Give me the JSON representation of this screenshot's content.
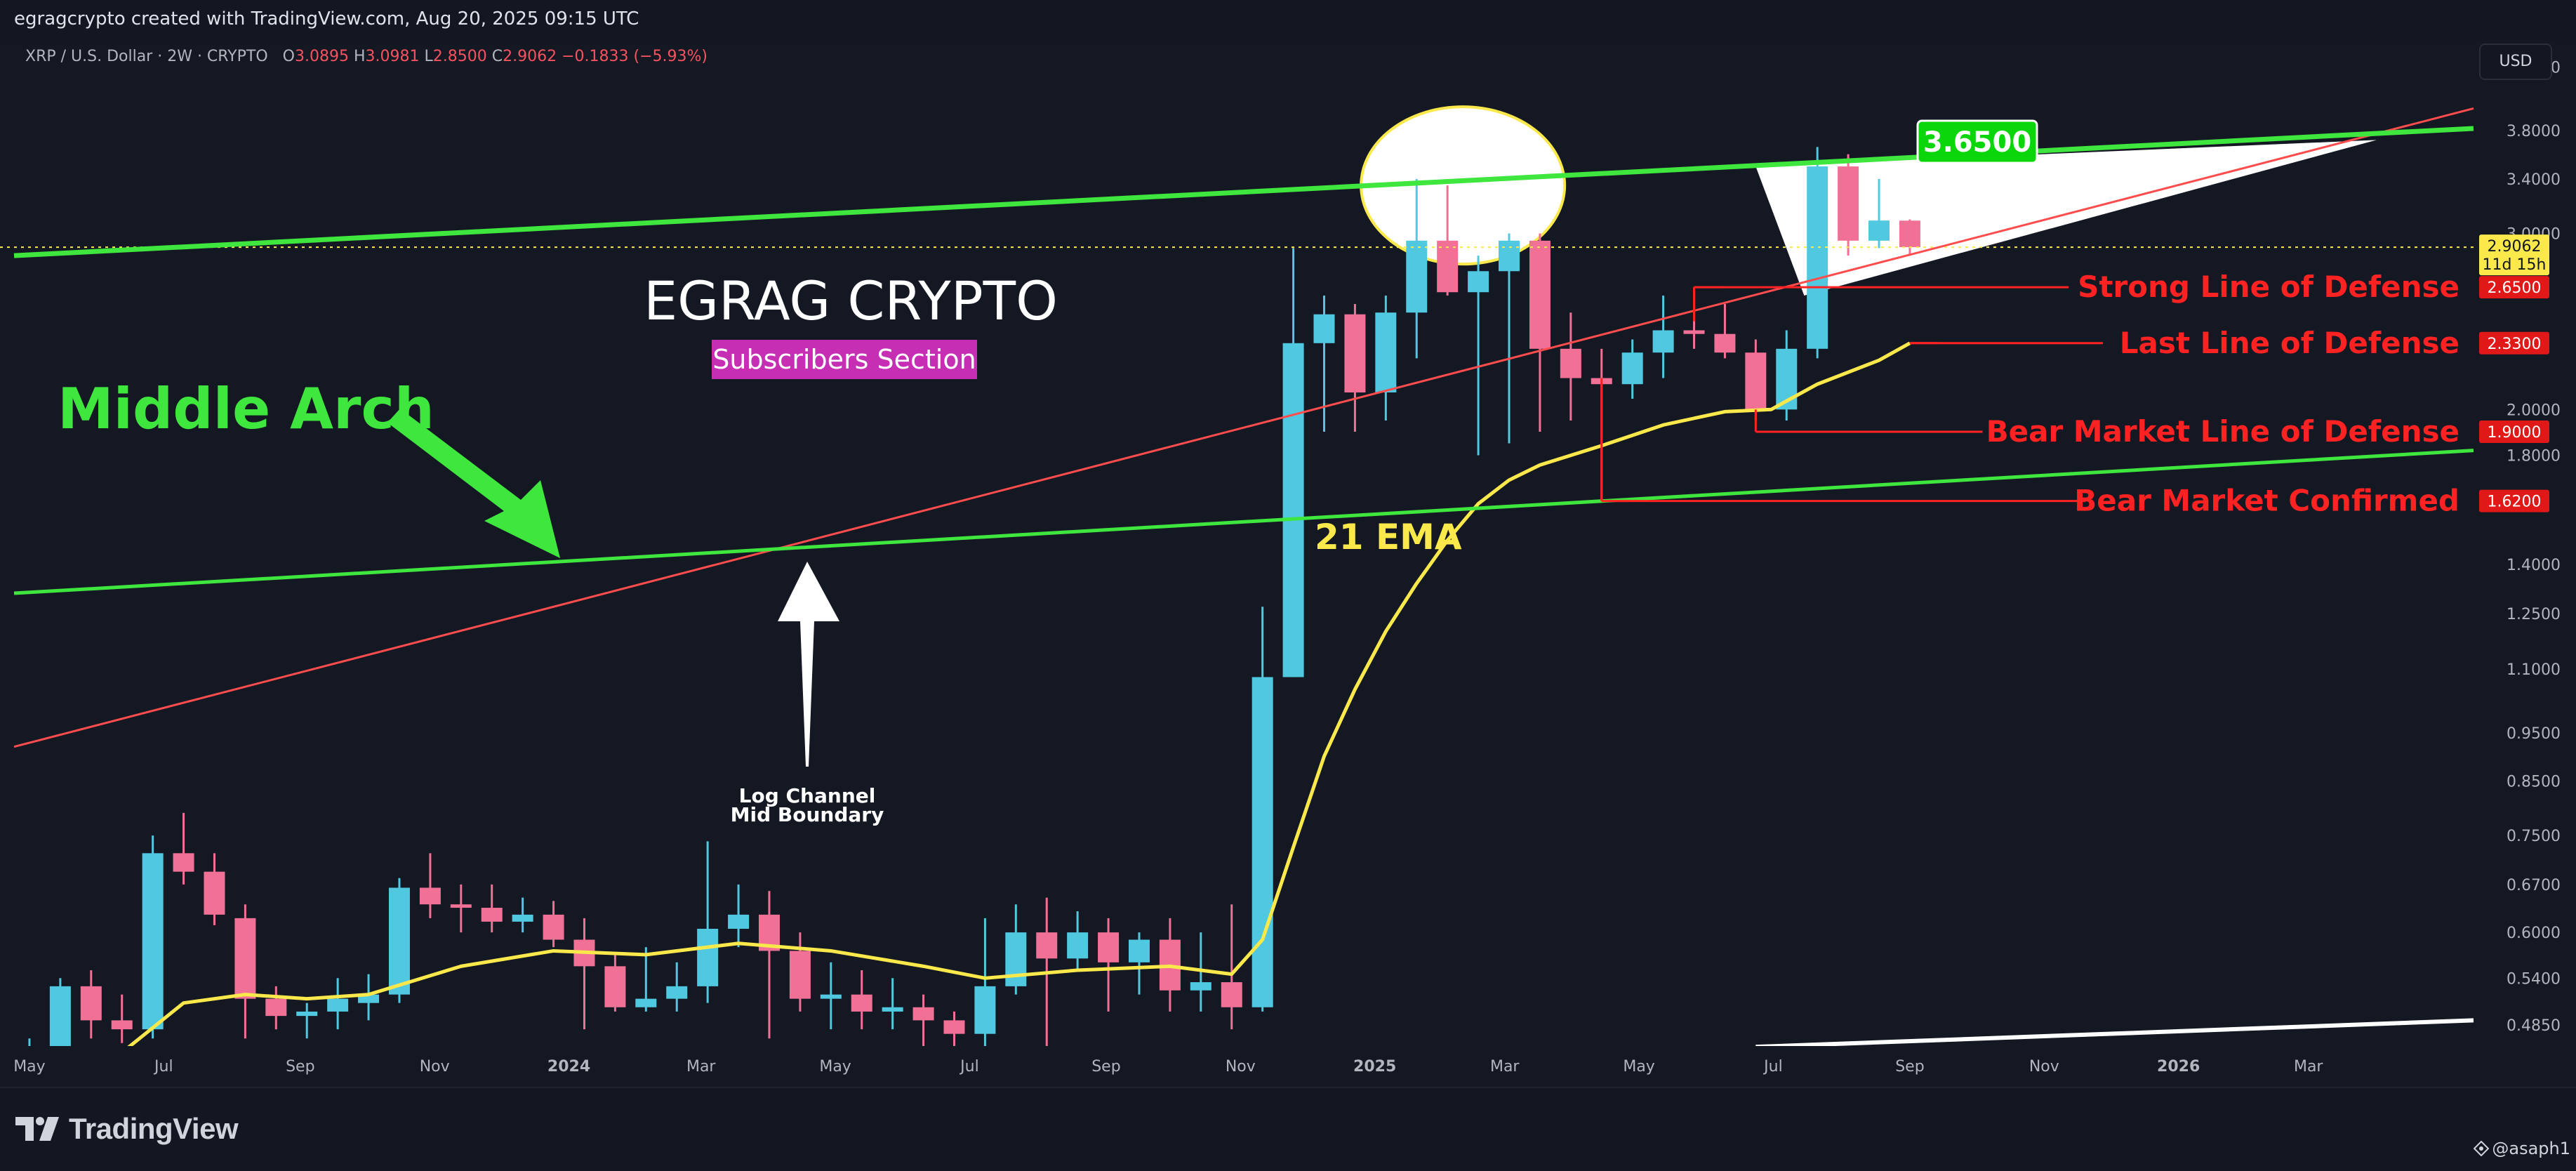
{
  "header": {
    "credit": "egragcrypto created with TradingView.com, Aug 20, 2025 09:15 UTC"
  },
  "legend": {
    "symbol": "XRP / U.S. Dollar · 2W · CRYPTO",
    "open_label": "O",
    "open": "3.0895",
    "high_label": "H",
    "high": "3.0981",
    "low_label": "L",
    "low": "2.8500",
    "close_label": "C",
    "close": "2.9062",
    "change": "−0.1833 (−5.93%)"
  },
  "currency_button": "USD",
  "footer": {
    "brand": "TradingView",
    "author": "@asaph1"
  },
  "colors": {
    "background": "#131722",
    "up_candle": "#50c8e0",
    "down_candle": "#f07096",
    "ema": "#fbe94c",
    "channel_line": "#ff4d4d",
    "middle_arch": "#3ee63e",
    "defense_label": "#ff2222"
  },
  "chart_data": {
    "type": "candlestick",
    "symbol": "XRP / U.S. Dollar",
    "interval": "2W",
    "y_scale": "log",
    "ylim": [
      0.44,
      4.6
    ],
    "xlim": [
      "2023-04-24",
      "2026-05-15"
    ],
    "y_ticks": [
      "4.4000",
      "3.8000",
      "3.4000",
      "3.0000",
      "2.0000",
      "1.8000",
      "1.4000",
      "1.2500",
      "1.1000",
      "0.9500",
      "0.8500",
      "0.7500",
      "0.6700",
      "0.6000",
      "0.5400",
      "0.4850"
    ],
    "x_ticks": [
      {
        "label": "May",
        "date": "2023-05-01",
        "bold": false
      },
      {
        "label": "Jul",
        "date": "2023-07-01",
        "bold": false
      },
      {
        "label": "Sep",
        "date": "2023-09-01",
        "bold": false
      },
      {
        "label": "Nov",
        "date": "2023-11-01",
        "bold": false
      },
      {
        "label": "2024",
        "date": "2024-01-01",
        "bold": true
      },
      {
        "label": "Mar",
        "date": "2024-03-01",
        "bold": false
      },
      {
        "label": "May",
        "date": "2024-05-01",
        "bold": false
      },
      {
        "label": "Jul",
        "date": "2024-07-01",
        "bold": false
      },
      {
        "label": "Sep",
        "date": "2024-09-01",
        "bold": false
      },
      {
        "label": "Nov",
        "date": "2024-11-01",
        "bold": false
      },
      {
        "label": "2025",
        "date": "2025-01-01",
        "bold": true
      },
      {
        "label": "Mar",
        "date": "2025-03-01",
        "bold": false
      },
      {
        "label": "May",
        "date": "2025-05-01",
        "bold": false
      },
      {
        "label": "Jul",
        "date": "2025-07-01",
        "bold": false
      },
      {
        "label": "Sep",
        "date": "2025-09-01",
        "bold": false
      },
      {
        "label": "Nov",
        "date": "2025-11-01",
        "bold": false
      },
      {
        "label": "2026",
        "date": "2026-01-01",
        "bold": true
      },
      {
        "label": "Mar",
        "date": "2026-03-01",
        "bold": false
      }
    ],
    "candles": [
      {
        "t": "2023-05-01",
        "o": 0.46,
        "h": 0.47,
        "l": 0.445,
        "c": 0.46
      },
      {
        "t": "2023-05-15",
        "o": 0.455,
        "h": 0.54,
        "l": 0.44,
        "c": 0.53
      },
      {
        "t": "2023-05-29",
        "o": 0.53,
        "h": 0.55,
        "l": 0.47,
        "c": 0.49
      },
      {
        "t": "2023-06-12",
        "o": 0.49,
        "h": 0.52,
        "l": 0.465,
        "c": 0.48
      },
      {
        "t": "2023-06-26",
        "o": 0.48,
        "h": 0.75,
        "l": 0.47,
        "c": 0.72
      },
      {
        "t": "2023-07-10",
        "o": 0.72,
        "h": 0.79,
        "l": 0.67,
        "c": 0.69
      },
      {
        "t": "2023-07-24",
        "o": 0.69,
        "h": 0.72,
        "l": 0.61,
        "c": 0.625
      },
      {
        "t": "2023-08-07",
        "o": 0.62,
        "h": 0.64,
        "l": 0.47,
        "c": 0.515
      },
      {
        "t": "2023-08-21",
        "o": 0.515,
        "h": 0.53,
        "l": 0.48,
        "c": 0.495
      },
      {
        "t": "2023-09-04",
        "o": 0.495,
        "h": 0.51,
        "l": 0.47,
        "c": 0.5
      },
      {
        "t": "2023-09-18",
        "o": 0.5,
        "h": 0.54,
        "l": 0.48,
        "c": 0.515
      },
      {
        "t": "2023-10-02",
        "o": 0.51,
        "h": 0.545,
        "l": 0.49,
        "c": 0.52
      },
      {
        "t": "2023-10-16",
        "o": 0.52,
        "h": 0.68,
        "l": 0.51,
        "c": 0.665
      },
      {
        "t": "2023-10-30",
        "o": 0.665,
        "h": 0.72,
        "l": 0.62,
        "c": 0.64
      },
      {
        "t": "2023-11-13",
        "o": 0.64,
        "h": 0.67,
        "l": 0.6,
        "c": 0.635
      },
      {
        "t": "2023-11-27",
        "o": 0.635,
        "h": 0.67,
        "l": 0.6,
        "c": 0.615
      },
      {
        "t": "2023-12-11",
        "o": 0.615,
        "h": 0.65,
        "l": 0.6,
        "c": 0.625
      },
      {
        "t": "2023-12-25",
        "o": 0.625,
        "h": 0.645,
        "l": 0.58,
        "c": 0.59
      },
      {
        "t": "2024-01-08",
        "o": 0.59,
        "h": 0.62,
        "l": 0.48,
        "c": 0.555
      },
      {
        "t": "2024-01-22",
        "o": 0.555,
        "h": 0.57,
        "l": 0.5,
        "c": 0.505
      },
      {
        "t": "2024-02-05",
        "o": 0.505,
        "h": 0.58,
        "l": 0.5,
        "c": 0.515
      },
      {
        "t": "2024-02-19",
        "o": 0.515,
        "h": 0.56,
        "l": 0.5,
        "c": 0.53
      },
      {
        "t": "2024-03-04",
        "o": 0.53,
        "h": 0.74,
        "l": 0.51,
        "c": 0.605
      },
      {
        "t": "2024-03-18",
        "o": 0.605,
        "h": 0.67,
        "l": 0.58,
        "c": 0.625
      },
      {
        "t": "2024-04-01",
        "o": 0.625,
        "h": 0.66,
        "l": 0.47,
        "c": 0.575
      },
      {
        "t": "2024-04-15",
        "o": 0.575,
        "h": 0.6,
        "l": 0.5,
        "c": 0.515
      },
      {
        "t": "2024-04-29",
        "o": 0.515,
        "h": 0.56,
        "l": 0.48,
        "c": 0.52
      },
      {
        "t": "2024-05-13",
        "o": 0.52,
        "h": 0.55,
        "l": 0.48,
        "c": 0.5
      },
      {
        "t": "2024-05-27",
        "o": 0.5,
        "h": 0.54,
        "l": 0.48,
        "c": 0.505
      },
      {
        "t": "2024-06-10",
        "o": 0.505,
        "h": 0.52,
        "l": 0.46,
        "c": 0.49
      },
      {
        "t": "2024-06-24",
        "o": 0.49,
        "h": 0.5,
        "l": 0.46,
        "c": 0.475
      },
      {
        "t": "2024-07-08",
        "o": 0.475,
        "h": 0.62,
        "l": 0.46,
        "c": 0.53
      },
      {
        "t": "2024-07-22",
        "o": 0.53,
        "h": 0.64,
        "l": 0.52,
        "c": 0.6
      },
      {
        "t": "2024-08-05",
        "o": 0.6,
        "h": 0.65,
        "l": 0.46,
        "c": 0.565
      },
      {
        "t": "2024-08-19",
        "o": 0.565,
        "h": 0.63,
        "l": 0.55,
        "c": 0.6
      },
      {
        "t": "2024-09-02",
        "o": 0.6,
        "h": 0.62,
        "l": 0.5,
        "c": 0.56
      },
      {
        "t": "2024-09-16",
        "o": 0.56,
        "h": 0.6,
        "l": 0.52,
        "c": 0.59
      },
      {
        "t": "2024-09-30",
        "o": 0.59,
        "h": 0.62,
        "l": 0.5,
        "c": 0.525
      },
      {
        "t": "2024-10-14",
        "o": 0.525,
        "h": 0.6,
        "l": 0.5,
        "c": 0.535
      },
      {
        "t": "2024-10-28",
        "o": 0.535,
        "h": 0.64,
        "l": 0.48,
        "c": 0.505
      },
      {
        "t": "2024-11-11",
        "o": 0.505,
        "h": 1.27,
        "l": 0.5,
        "c": 1.08
      },
      {
        "t": "2024-11-25",
        "o": 1.08,
        "h": 2.9,
        "l": 1.08,
        "c": 2.33
      },
      {
        "t": "2024-12-09",
        "o": 2.33,
        "h": 2.6,
        "l": 1.9,
        "c": 2.49
      },
      {
        "t": "2024-12-23",
        "o": 2.49,
        "h": 2.55,
        "l": 1.9,
        "c": 2.08
      },
      {
        "t": "2025-01-06",
        "o": 2.08,
        "h": 2.6,
        "l": 1.95,
        "c": 2.5
      },
      {
        "t": "2025-01-20",
        "o": 2.5,
        "h": 3.4,
        "l": 2.25,
        "c": 2.95
      },
      {
        "t": "2025-02-03",
        "o": 2.95,
        "h": 3.35,
        "l": 2.6,
        "c": 2.62
      },
      {
        "t": "2025-02-17",
        "o": 2.62,
        "h": 2.85,
        "l": 1.8,
        "c": 2.75
      },
      {
        "t": "2025-03-03",
        "o": 2.75,
        "h": 3.0,
        "l": 1.85,
        "c": 2.95
      },
      {
        "t": "2025-03-17",
        "o": 2.95,
        "h": 3.0,
        "l": 1.9,
        "c": 2.3
      },
      {
        "t": "2025-03-31",
        "o": 2.3,
        "h": 2.5,
        "l": 1.95,
        "c": 2.15
      },
      {
        "t": "2025-04-14",
        "o": 2.15,
        "h": 2.3,
        "l": 1.62,
        "c": 2.12
      },
      {
        "t": "2025-04-28",
        "o": 2.12,
        "h": 2.35,
        "l": 2.05,
        "c": 2.28
      },
      {
        "t": "2025-05-12",
        "o": 2.28,
        "h": 2.6,
        "l": 2.15,
        "c": 2.4
      },
      {
        "t": "2025-05-26",
        "o": 2.4,
        "h": 2.65,
        "l": 2.3,
        "c": 2.38
      },
      {
        "t": "2025-06-09",
        "o": 2.38,
        "h": 2.55,
        "l": 2.25,
        "c": 2.28
      },
      {
        "t": "2025-06-23",
        "o": 2.28,
        "h": 2.35,
        "l": 1.95,
        "c": 2.0
      },
      {
        "t": "2025-07-07",
        "o": 2.0,
        "h": 2.4,
        "l": 1.95,
        "c": 2.3
      },
      {
        "t": "2025-07-21",
        "o": 2.3,
        "h": 3.66,
        "l": 2.25,
        "c": 3.5
      },
      {
        "t": "2025-08-04",
        "o": 3.5,
        "h": 3.6,
        "l": 2.85,
        "c": 2.95
      },
      {
        "t": "2025-08-18",
        "o": 2.95,
        "h": 3.4,
        "l": 2.9,
        "c": 3.09
      },
      {
        "t": "2025-09-01",
        "o": 3.0895,
        "h": 3.0981,
        "l": 2.85,
        "c": 2.9062
      }
    ],
    "ema21": {
      "name": "21 EMA",
      "points": [
        {
          "t": "2023-05-01",
          "v": 0.445
        },
        {
          "t": "2023-06-12",
          "v": 0.455
        },
        {
          "t": "2023-07-10",
          "v": 0.51
        },
        {
          "t": "2023-08-07",
          "v": 0.52
        },
        {
          "t": "2023-09-04",
          "v": 0.515
        },
        {
          "t": "2023-10-02",
          "v": 0.52
        },
        {
          "t": "2023-11-13",
          "v": 0.555
        },
        {
          "t": "2023-12-25",
          "v": 0.575
        },
        {
          "t": "2024-02-05",
          "v": 0.57
        },
        {
          "t": "2024-03-18",
          "v": 0.585
        },
        {
          "t": "2024-04-29",
          "v": 0.575
        },
        {
          "t": "2024-06-10",
          "v": 0.555
        },
        {
          "t": "2024-07-08",
          "v": 0.54
        },
        {
          "t": "2024-08-19",
          "v": 0.55
        },
        {
          "t": "2024-09-30",
          "v": 0.555
        },
        {
          "t": "2024-10-28",
          "v": 0.545
        },
        {
          "t": "2024-11-11",
          "v": 0.59
        },
        {
          "t": "2024-11-25",
          "v": 0.73
        },
        {
          "t": "2024-12-09",
          "v": 0.9
        },
        {
          "t": "2024-12-23",
          "v": 1.05
        },
        {
          "t": "2025-01-06",
          "v": 1.2
        },
        {
          "t": "2025-01-20",
          "v": 1.34
        },
        {
          "t": "2025-02-03",
          "v": 1.48
        },
        {
          "t": "2025-02-17",
          "v": 1.61
        },
        {
          "t": "2025-03-03",
          "v": 1.7
        },
        {
          "t": "2025-03-17",
          "v": 1.76
        },
        {
          "t": "2025-04-14",
          "v": 1.84
        },
        {
          "t": "2025-05-12",
          "v": 1.93
        },
        {
          "t": "2025-06-09",
          "v": 1.99
        },
        {
          "t": "2025-06-30",
          "v": 2.0
        },
        {
          "t": "2025-07-21",
          "v": 2.12
        },
        {
          "t": "2025-08-18",
          "v": 2.24
        },
        {
          "t": "2025-09-01",
          "v": 2.33
        }
      ]
    },
    "price_line": {
      "value": 2.9062,
      "label": "2.9062",
      "countdown": "11d 15h"
    },
    "target": {
      "value": 3.65,
      "label": "3.6500"
    },
    "levels": [
      {
        "label": "Strong Line of Defense",
        "value": 2.65,
        "price_label": "2.6500",
        "from": "2025-05-26"
      },
      {
        "label": "Last Line of Defense",
        "value": 2.33,
        "price_label": "2.3300",
        "from": "2025-09-01"
      },
      {
        "label": "Bear Market Line of Defense",
        "value": 1.9,
        "price_label": "1.9000",
        "from": "2025-06-23"
      },
      {
        "label": "Bear Market Confirmed",
        "value": 1.62,
        "price_label": "1.6200",
        "from": "2025-04-14"
      }
    ],
    "annotations": {
      "brand_title": "EGRAG CRYPTO",
      "brand_subtitle": "Subscribers Section",
      "middle_arch": "Middle Arch",
      "ema_label": "21 EMA",
      "log_channel": [
        "Log Channel",
        "Mid Boundary"
      ]
    },
    "trendlines": {
      "middle_arch_upper": [
        {
          "t": "2023-04-24",
          "v": 2.85
        },
        {
          "t": "2026-05-15",
          "v": 3.82
        }
      ],
      "middle_arch_lower": [
        {
          "t": "2023-04-24",
          "v": 1.31
        },
        {
          "t": "2026-05-15",
          "v": 1.82
        }
      ],
      "log_channel_mid": [
        {
          "t": "2023-04-24",
          "v": 0.92
        },
        {
          "t": "2026-05-15",
          "v": 4.0
        }
      ],
      "bottom_white": [
        {
          "t": "2025-06-23",
          "v": 0.461
        },
        {
          "t": "2026-05-15",
          "v": 0.49
        }
      ]
    }
  }
}
